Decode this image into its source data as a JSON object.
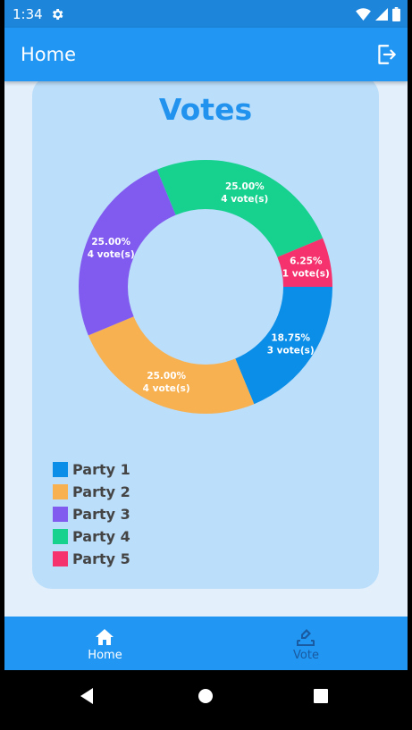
{
  "status_bar": {
    "time": "1:34",
    "icons": [
      "gear-icon",
      "wifi-icon",
      "signal-icon",
      "battery-icon"
    ]
  },
  "app_bar": {
    "title": "Home",
    "action_icon": "logout-icon"
  },
  "card": {
    "title": "Votes"
  },
  "chart_data": {
    "type": "pie",
    "donut": true,
    "slices": [
      {
        "name": "Party 1",
        "percent_label": "18.75%",
        "votes_label": "3 vote(s)",
        "value": 3,
        "color": "#0a8ee8"
      },
      {
        "name": "Party 2",
        "percent_label": "25.00%",
        "votes_label": "4 vote(s)",
        "value": 4,
        "color": "#f8b150"
      },
      {
        "name": "Party 3",
        "percent_label": "25.00%",
        "votes_label": "4 vote(s)",
        "value": 4,
        "color": "#815bf0"
      },
      {
        "name": "Party 4",
        "percent_label": "25.00%",
        "votes_label": "4 vote(s)",
        "value": 4,
        "color": "#17d18f"
      },
      {
        "name": "Party 5",
        "percent_label": "6.25%",
        "votes_label": "1 vote(s)",
        "value": 1,
        "color": "#f5326d"
      }
    ],
    "legend_position": "bottom-left"
  },
  "bottom_nav": {
    "items": [
      {
        "label": "Home",
        "icon": "home-icon",
        "active": true
      },
      {
        "label": "Vote",
        "icon": "vote-icon",
        "active": false
      }
    ]
  },
  "colors": {
    "primary": "#2196f3",
    "card_bg": "#bbdefa",
    "title": "#2193ee"
  }
}
